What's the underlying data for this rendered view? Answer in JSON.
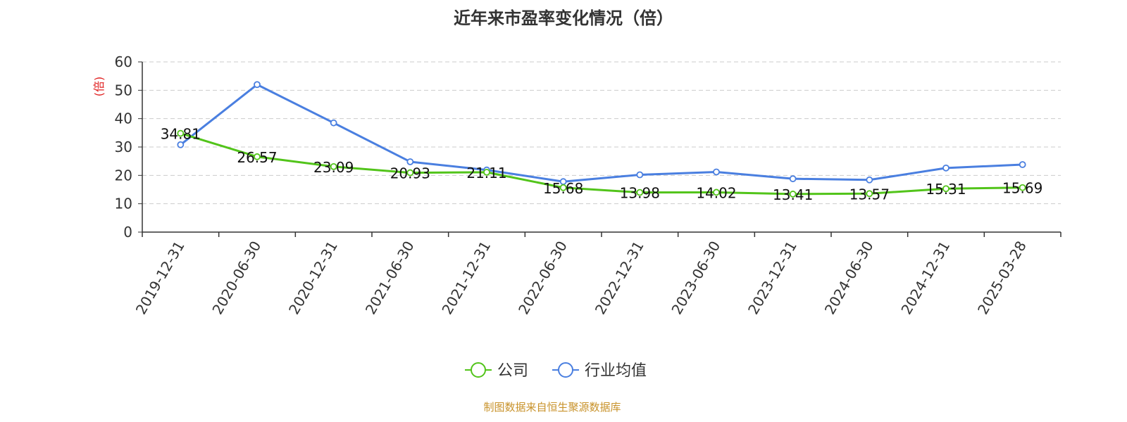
{
  "chart_data": {
    "type": "line",
    "title": "近年来市盈率变化情况（倍）",
    "ylabel": "(倍)",
    "ylim": [
      0,
      60
    ],
    "yticks": [
      0,
      10,
      20,
      30,
      40,
      50,
      60
    ],
    "categories": [
      "2019-12-31",
      "2020-06-30",
      "2020-12-31",
      "2021-06-30",
      "2021-12-31",
      "2022-06-30",
      "2022-12-31",
      "2023-06-30",
      "2023-12-31",
      "2024-06-30",
      "2024-12-31",
      "2025-03-28"
    ],
    "series": [
      {
        "name": "公司",
        "color": "#52c41a",
        "show_labels": true,
        "values": [
          34.81,
          26.57,
          23.09,
          20.93,
          21.11,
          15.68,
          13.98,
          14.02,
          13.41,
          13.57,
          15.31,
          15.69
        ]
      },
      {
        "name": "行业均值",
        "color": "#4a7fe0",
        "show_labels": false,
        "values": [
          30.8,
          52.0,
          38.5,
          24.8,
          21.9,
          17.8,
          20.2,
          21.2,
          18.8,
          18.4,
          22.6,
          23.8
        ]
      }
    ],
    "grid": "horizontal-dashed",
    "legend": "bottom-center",
    "source": "制图数据来自恒生聚源数据库",
    "colors": {
      "axis": "#333333",
      "grid": "#cccccc",
      "ylabel": "#e02020",
      "source": "#c8922a"
    }
  }
}
